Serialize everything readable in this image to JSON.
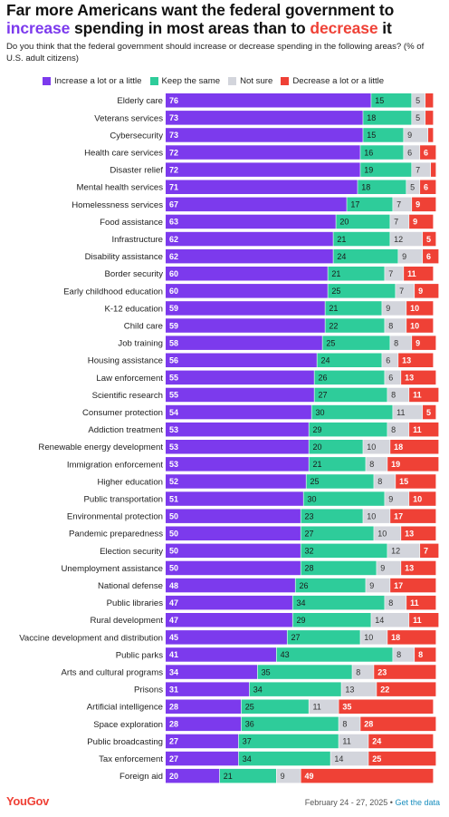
{
  "title": {
    "part1": "Far more Americans want the federal government to ",
    "increase_word": "increase",
    "part2": " spending in most areas than to ",
    "decrease_word": "decrease",
    "part3": " it"
  },
  "subtitle": "Do you think that the federal government should increase or decrease spending in the following areas? (% of U.S. adult citizens)",
  "footer": {
    "logo": "YouGov",
    "date": "February 24 - 27, 2025",
    "separator": " • ",
    "link": "Get the data"
  },
  "colors": {
    "increase": "#7c3aed",
    "same": "#2ecc9a",
    "not_sure": "#d3d5dc",
    "decrease": "#ef4136"
  },
  "chart_data": {
    "type": "bar",
    "orientation": "horizontal",
    "stacked": true,
    "xlim": [
      0,
      100
    ],
    "legend_position": "top-left",
    "categories": [
      "Elderly care",
      "Veterans services",
      "Cybersecurity",
      "Health care services",
      "Disaster relief",
      "Mental health services",
      "Homelessness services",
      "Food assistance",
      "Infrastructure",
      "Disability assistance",
      "Border security",
      "Early childhood education",
      "K-12 education",
      "Child care",
      "Job training",
      "Housing assistance",
      "Law enforcement",
      "Scientific research",
      "Consumer protection",
      "Addiction treatment",
      "Renewable energy development",
      "Immigration enforcement",
      "Higher education",
      "Public transportation",
      "Environmental protection",
      "Pandemic preparedness",
      "Election security",
      "Unemployment assistance",
      "National defense",
      "Public libraries",
      "Rural development",
      "Vaccine development and distribution",
      "Public parks",
      "Arts and cultural programs",
      "Prisons",
      "Artificial intelligence",
      "Space exploration",
      "Public broadcasting",
      "Tax enforcement",
      "Foreign aid"
    ],
    "series": [
      {
        "name": "Increase a lot or a little",
        "values": [
          76,
          73,
          73,
          72,
          72,
          71,
          67,
          63,
          62,
          62,
          60,
          60,
          59,
          59,
          58,
          56,
          55,
          55,
          54,
          53,
          53,
          53,
          52,
          51,
          50,
          50,
          50,
          50,
          48,
          47,
          47,
          45,
          41,
          34,
          31,
          28,
          28,
          27,
          27,
          20
        ]
      },
      {
        "name": "Keep the same",
        "values": [
          15,
          18,
          15,
          16,
          19,
          18,
          17,
          20,
          21,
          24,
          21,
          25,
          21,
          22,
          25,
          24,
          26,
          27,
          30,
          29,
          20,
          21,
          25,
          30,
          23,
          27,
          32,
          28,
          26,
          34,
          29,
          27,
          43,
          35,
          34,
          25,
          36,
          37,
          34,
          21
        ]
      },
      {
        "name": "Not sure",
        "values": [
          5,
          5,
          9,
          6,
          7,
          5,
          7,
          7,
          12,
          9,
          7,
          7,
          9,
          8,
          8,
          6,
          6,
          8,
          11,
          8,
          10,
          8,
          8,
          9,
          10,
          10,
          12,
          9,
          9,
          8,
          14,
          10,
          8,
          8,
          13,
          11,
          8,
          11,
          14,
          9
        ]
      },
      {
        "name": "Decrease a lot or a little",
        "values": [
          3,
          3,
          2,
          6,
          2,
          6,
          9,
          9,
          5,
          6,
          11,
          9,
          10,
          10,
          9,
          13,
          13,
          11,
          5,
          11,
          18,
          19,
          15,
          10,
          17,
          13,
          7,
          13,
          17,
          11,
          11,
          18,
          8,
          23,
          22,
          35,
          28,
          24,
          25,
          49
        ]
      }
    ],
    "value_label_threshold": 5
  }
}
